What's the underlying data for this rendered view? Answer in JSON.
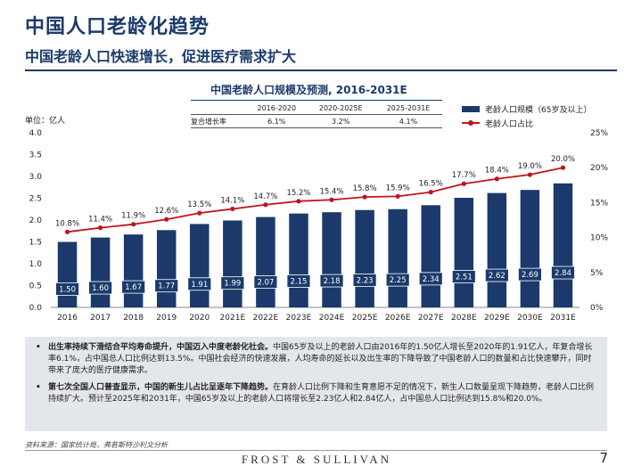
{
  "header": {
    "title": "中国人口老龄化趋势",
    "subtitle": "中国老龄人口快速增长，促进医疗需求扩大"
  },
  "cagr_table": {
    "columns": [
      "",
      "2016-2020",
      "2020-2025E",
      "2025-2031E"
    ],
    "row_label": "复合增长率",
    "values": [
      "6.1%",
      "3.2%",
      "4.1%"
    ]
  },
  "chart_data": {
    "type": "bar",
    "title": "中国老龄人口规模及预测, 2016-2031E",
    "ylabel": "单位：亿人",
    "categories": [
      "2016",
      "2017",
      "2018",
      "2019",
      "2020",
      "2021E",
      "2022E",
      "2023E",
      "2024E",
      "2025E",
      "2026E",
      "2027E",
      "2028E",
      "2029E",
      "2030E",
      "2031E"
    ],
    "series": [
      {
        "name": "老龄人口规模（65岁及以上）",
        "type": "bar",
        "axis": "left",
        "color": "#1b3a6b",
        "values": [
          1.5,
          1.6,
          1.67,
          1.77,
          1.91,
          1.99,
          2.07,
          2.15,
          2.18,
          2.23,
          2.25,
          2.34,
          2.51,
          2.62,
          2.69,
          2.84
        ],
        "labels": [
          "1.50",
          "1.60",
          "1.67",
          "1.77",
          "1.91",
          "1.99",
          "2.07",
          "2.15",
          "2.18",
          "2.23",
          "2.25",
          "2.34",
          "2.51",
          "2.62",
          "2.69",
          "2.84"
        ]
      },
      {
        "name": "老龄人口占比",
        "type": "line",
        "axis": "right",
        "color": "#c0141e",
        "values": [
          10.8,
          11.4,
          11.9,
          12.6,
          13.5,
          14.1,
          14.7,
          15.2,
          15.4,
          15.8,
          15.9,
          16.5,
          17.7,
          18.4,
          19.0,
          20.0
        ],
        "labels": [
          "10.8%",
          "11.4%",
          "11.9%",
          "12.6%",
          "13.5%",
          "14.1%",
          "14.7%",
          "15.2%",
          "15.4%",
          "15.8%",
          "15.9%",
          "16.5%",
          "17.7%",
          "18.4%",
          "19.0%",
          "20.0%"
        ]
      }
    ],
    "ylim": [
      0,
      4.0
    ],
    "yticks": [
      "0.0",
      "0.5",
      "1.0",
      "1.5",
      "2.0",
      "2.5",
      "3.0",
      "3.5",
      "4.0"
    ],
    "y2lim": [
      0,
      25
    ],
    "y2ticks": [
      "0%",
      "5%",
      "10%",
      "15%",
      "20%",
      "25%"
    ],
    "grid": false,
    "legend_position": "top-right"
  },
  "notes": [
    {
      "bold": "出生率持续下滑结合平均寿命提升，中国迈入中度老龄化社会。",
      "text": "中国65岁及以上的老龄人口由2016年的1.50亿人增长至2020年的1.91亿人，年复合增长率6.1%，占中国总人口比例达到13.5%。中国社会经济的快速发展，人均寿命的延长以及出生率的下降导致了中国老龄人口的数量和占比快速攀升，同时带来了庞大的医疗健康需求。"
    },
    {
      "bold": "第七次全国人口普查显示，中国的新生儿占比呈逐年下降趋势。",
      "text": "在育龄人口比例下降和生育意愿不足的情况下，新生人口数量呈现下降趋势，老龄人口比例持续扩大。预计至2025年和2031年，中国65岁及以上的老龄人口将增长至2.23亿人和2.84亿人，占中国总人口比例达到15.8%和20.0%。"
    }
  ],
  "footer": {
    "source": "资料来源：国家统计局，弗若斯特沙利文分析",
    "brand": "FROST & SULLIVAN",
    "page": "7"
  }
}
